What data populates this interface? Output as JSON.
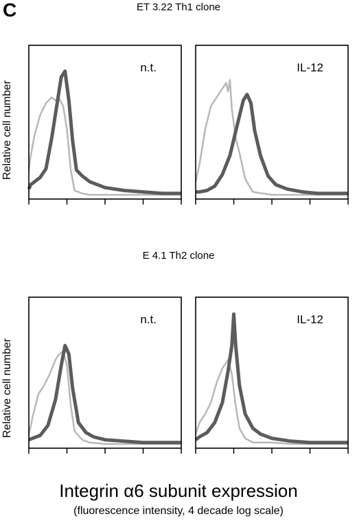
{
  "panel_letter": "C",
  "y_axis_label": "Relative cell number",
  "x_axis_label": "Integrin α6 subunit expression",
  "x_axis_sublabel": "(fluorescence intensity, 4 decade  log scale)",
  "colors": {
    "treated_series": "#5c5c5c",
    "control_series": "#b8b8b8",
    "frame": "#000000"
  },
  "chart_data": [
    {
      "type": "line",
      "group_title": "ET 3.22 Th1 clone",
      "panel_label": "n.t.",
      "xlim": [
        0,
        4
      ],
      "ylim": [
        0,
        1
      ],
      "grid": false,
      "series": [
        {
          "x": [
            0.0,
            0.05,
            0.15,
            0.3,
            0.45,
            0.6,
            0.75,
            0.85,
            0.95,
            1.05,
            1.15,
            1.25,
            1.4,
            1.6,
            2.0,
            2.5,
            3.0,
            3.5,
            4.0
          ],
          "values": [
            0.05,
            0.08,
            0.1,
            0.13,
            0.19,
            0.4,
            0.65,
            0.82,
            0.86,
            0.66,
            0.38,
            0.18,
            0.14,
            0.1,
            0.06,
            0.04,
            0.03,
            0.02,
            0.02
          ]
        },
        {
          "x": [
            0.0,
            0.05,
            0.15,
            0.3,
            0.45,
            0.6,
            0.7,
            0.8,
            0.9,
            1.0,
            1.1,
            1.2,
            1.4,
            1.6,
            2.0,
            2.5,
            3.0,
            3.5,
            4.0
          ],
          "values": [
            0.18,
            0.28,
            0.42,
            0.56,
            0.64,
            0.68,
            0.66,
            0.67,
            0.62,
            0.46,
            0.18,
            0.04,
            0.02,
            0.01,
            0.01,
            0.01,
            0.01,
            0.01,
            0.01
          ]
        }
      ]
    },
    {
      "type": "line",
      "group_title": "",
      "panel_label": "IL-12",
      "xlim": [
        0,
        4
      ],
      "ylim": [
        0,
        1
      ],
      "grid": false,
      "series": [
        {
          "x": [
            0.0,
            0.1,
            0.3,
            0.5,
            0.7,
            0.9,
            1.1,
            1.25,
            1.35,
            1.45,
            1.55,
            1.7,
            1.9,
            2.1,
            2.4,
            2.8,
            3.2,
            3.6,
            4.0
          ],
          "values": [
            0.03,
            0.03,
            0.04,
            0.07,
            0.15,
            0.28,
            0.5,
            0.66,
            0.7,
            0.64,
            0.45,
            0.28,
            0.14,
            0.08,
            0.05,
            0.03,
            0.02,
            0.02,
            0.02
          ]
        },
        {
          "x": [
            0.0,
            0.1,
            0.25,
            0.4,
            0.55,
            0.7,
            0.8,
            0.85,
            0.9,
            0.95,
            1.05,
            1.15,
            1.3,
            1.5,
            2.0,
            2.5,
            3.0,
            3.5,
            4.0
          ],
          "values": [
            0.1,
            0.22,
            0.46,
            0.62,
            0.68,
            0.74,
            0.78,
            0.72,
            0.8,
            0.6,
            0.4,
            0.3,
            0.12,
            0.03,
            0.01,
            0.01,
            0.01,
            0.01,
            0.01
          ]
        }
      ]
    },
    {
      "type": "line",
      "group_title": "E 4.1 Th2 clone",
      "panel_label": "n.t.",
      "xlim": [
        0,
        4
      ],
      "ylim": [
        0,
        1
      ],
      "grid": false,
      "series": [
        {
          "x": [
            0.0,
            0.1,
            0.3,
            0.5,
            0.7,
            0.85,
            0.95,
            1.05,
            1.15,
            1.3,
            1.5,
            1.7,
            2.0,
            2.5,
            3.0,
            3.5,
            4.0
          ],
          "values": [
            0.04,
            0.05,
            0.07,
            0.14,
            0.32,
            0.56,
            0.7,
            0.64,
            0.4,
            0.16,
            0.09,
            0.06,
            0.04,
            0.03,
            0.02,
            0.02,
            0.02
          ]
        },
        {
          "x": [
            0.0,
            0.1,
            0.25,
            0.4,
            0.55,
            0.7,
            0.8,
            0.9,
            1.0,
            1.1,
            1.2,
            1.4,
            1.6,
            2.0,
            2.5,
            3.0,
            3.5,
            4.0
          ],
          "values": [
            0.07,
            0.2,
            0.36,
            0.42,
            0.5,
            0.6,
            0.64,
            0.66,
            0.56,
            0.28,
            0.1,
            0.04,
            0.02,
            0.01,
            0.01,
            0.01,
            0.01,
            0.01
          ]
        }
      ]
    },
    {
      "type": "line",
      "group_title": "",
      "panel_label": "IL-12",
      "xlim": [
        0,
        4
      ],
      "ylim": [
        0,
        1
      ],
      "grid": false,
      "series": [
        {
          "x": [
            0.0,
            0.1,
            0.3,
            0.5,
            0.7,
            0.85,
            0.95,
            1.0,
            1.05,
            1.15,
            1.3,
            1.5,
            1.7,
            2.0,
            2.5,
            3.0,
            3.5,
            4.0
          ],
          "values": [
            0.04,
            0.06,
            0.09,
            0.16,
            0.3,
            0.52,
            0.7,
            0.92,
            0.7,
            0.42,
            0.22,
            0.12,
            0.08,
            0.05,
            0.03,
            0.02,
            0.02,
            0.02
          ]
        },
        {
          "x": [
            0.0,
            0.1,
            0.25,
            0.4,
            0.55,
            0.7,
            0.85,
            0.95,
            1.05,
            1.15,
            1.3,
            1.5,
            2.0,
            2.5,
            3.0,
            3.5,
            4.0
          ],
          "values": [
            0.08,
            0.16,
            0.22,
            0.3,
            0.44,
            0.54,
            0.6,
            0.5,
            0.28,
            0.12,
            0.05,
            0.02,
            0.02,
            0.01,
            0.01,
            0.01,
            0.01
          ]
        }
      ]
    }
  ]
}
